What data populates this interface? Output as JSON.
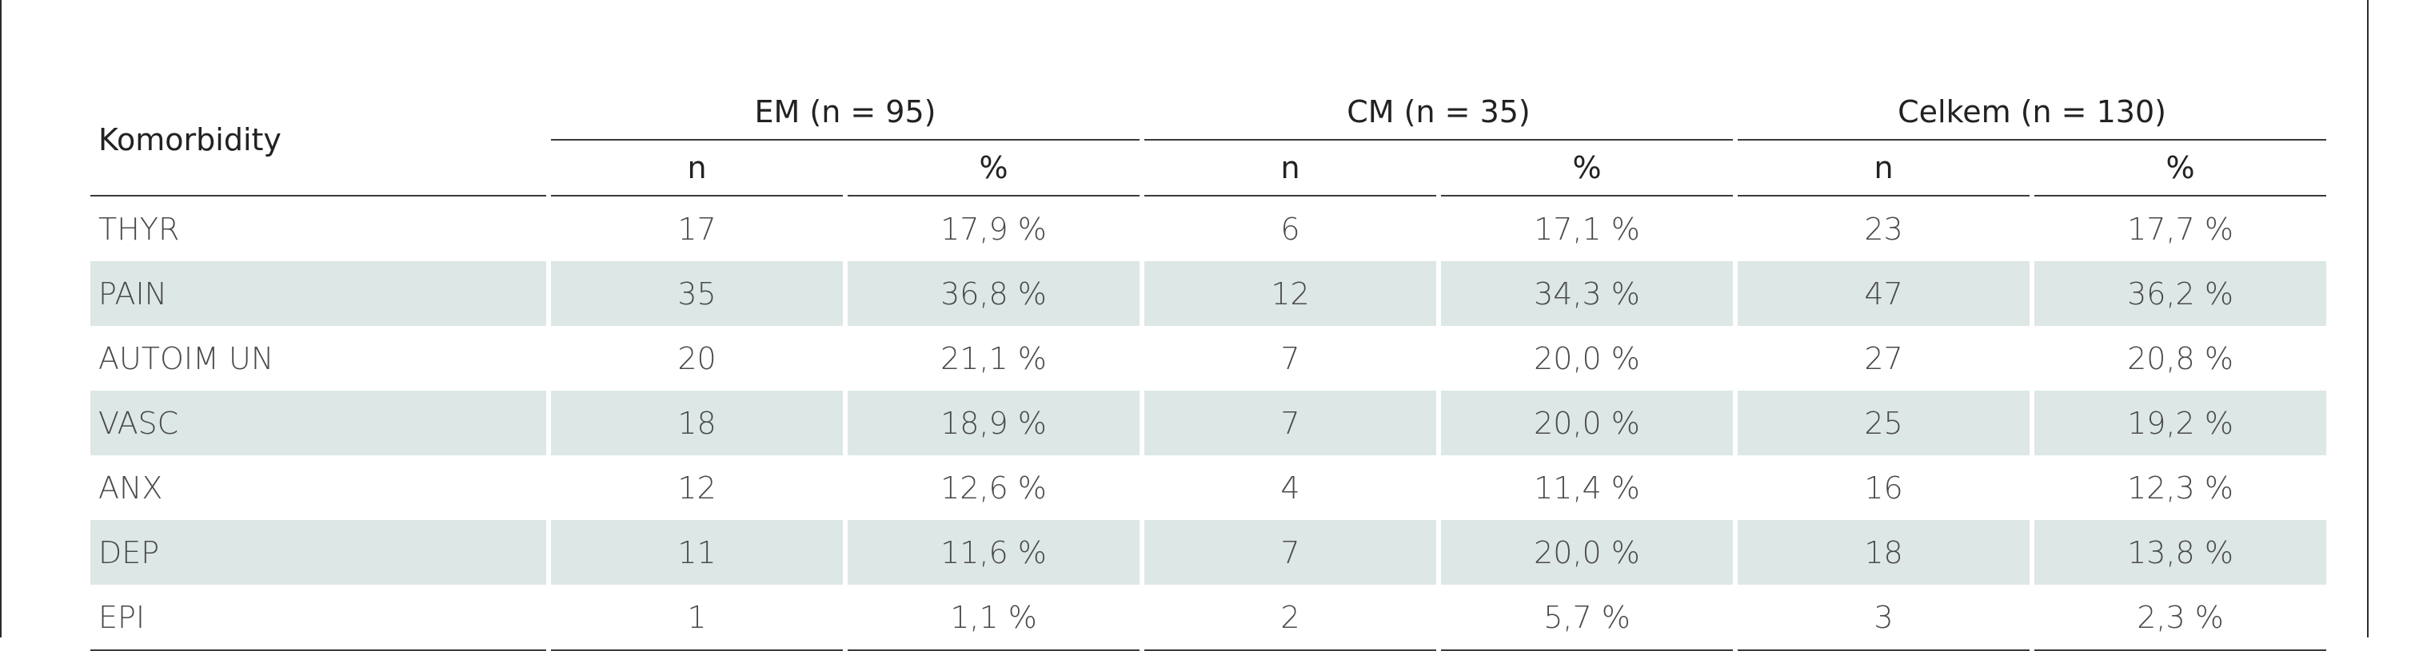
{
  "table": {
    "row_header": "Komorbidity",
    "groups": [
      {
        "label": "EM (n = 95)"
      },
      {
        "label": "CM (n = 35)"
      },
      {
        "label": "Celkem (n = 130)"
      }
    ],
    "subheaders": {
      "n": "n",
      "pct": "%"
    },
    "rows": [
      {
        "label": "THYR",
        "cells": [
          "17",
          "17,9 %",
          "6",
          "17,1 %",
          "23",
          "17,7 %"
        ]
      },
      {
        "label": "PAIN",
        "cells": [
          "35",
          "36,8 %",
          "12",
          "34,3 %",
          "47",
          "36,2 %"
        ]
      },
      {
        "label": "AUTOIM UN",
        "cells": [
          "20",
          "21,1 %",
          "7",
          "20,0 %",
          "27",
          "20,8 %"
        ]
      },
      {
        "label": "VASC",
        "cells": [
          "18",
          "18,9 %",
          "7",
          "20,0 %",
          "25",
          "19,2 %"
        ]
      },
      {
        "label": "ANX",
        "cells": [
          "12",
          "12,6 %",
          "4",
          "11,4 %",
          "16",
          "12,3 %"
        ]
      },
      {
        "label": "DEP",
        "cells": [
          "11",
          "11,6 %",
          "7",
          "20,0 %",
          "18",
          "13,8 %"
        ]
      },
      {
        "label": "EPI",
        "cells": [
          "1",
          "1,1 %",
          "2",
          "5,7 %",
          "3",
          "2,3 %"
        ]
      }
    ]
  },
  "colors": {
    "shade": "#dde7e5",
    "rule": "#3a3a3a"
  }
}
